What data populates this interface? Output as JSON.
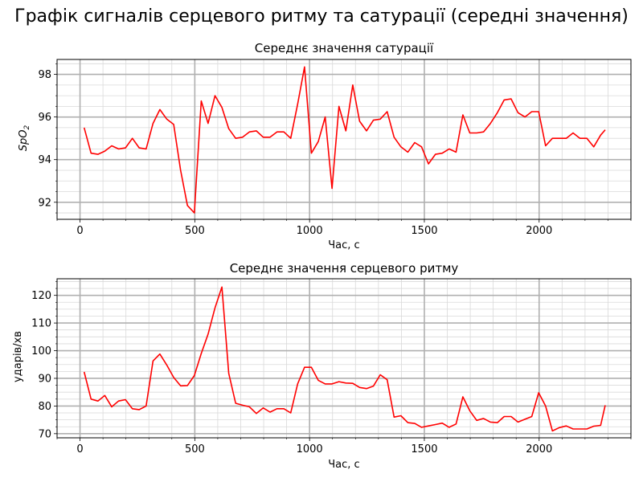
{
  "figure": {
    "title": "Графік сигналів серцевого ритму та сатурації (середні значення)"
  },
  "chart_data": [
    {
      "type": "line",
      "title": "Середнє значення сатурації",
      "xlabel": "Час, с",
      "ylabel": "SpO2",
      "xlim": [
        -100,
        2400
      ],
      "ylim": [
        91.2,
        98.7
      ],
      "xticks": [
        0,
        500,
        1000,
        1500,
        2000
      ],
      "yticks": [
        92,
        94,
        96,
        98
      ],
      "grid": true,
      "minor_grid": true,
      "series": [
        {
          "color": "#ff0000",
          "x": [
            18,
            48,
            78,
            108,
            138,
            168,
            198,
            228,
            258,
            288,
            318,
            348,
            378,
            408,
            438,
            468,
            498,
            528,
            558,
            588,
            618,
            648,
            678,
            708,
            738,
            768,
            798,
            828,
            858,
            888,
            918,
            948,
            978,
            1008,
            1038,
            1068,
            1098,
            1128,
            1158,
            1188,
            1218,
            1248,
            1278,
            1308,
            1338,
            1368,
            1398,
            1428,
            1458,
            1488,
            1518,
            1548,
            1578,
            1608,
            1638,
            1668,
            1698,
            1728,
            1758,
            1788,
            1818,
            1848,
            1878,
            1908,
            1938,
            1968,
            1998,
            2028,
            2058,
            2088,
            2118,
            2148,
            2178,
            2208,
            2238,
            2268,
            2288
          ],
          "y": [
            95.5,
            94.3,
            94.25,
            94.4,
            94.65,
            94.5,
            94.55,
            95.0,
            94.55,
            94.5,
            95.7,
            96.35,
            95.9,
            95.65,
            93.5,
            91.85,
            91.5,
            96.75,
            95.7,
            97.0,
            96.45,
            95.45,
            95.0,
            95.05,
            95.3,
            95.35,
            95.05,
            95.05,
            95.3,
            95.3,
            95.0,
            96.6,
            98.35,
            94.3,
            94.85,
            96.0,
            92.65,
            96.5,
            95.35,
            97.5,
            95.8,
            95.35,
            95.85,
            95.9,
            96.25,
            95.05,
            94.6,
            94.35,
            94.8,
            94.6,
            93.8,
            94.25,
            94.3,
            94.5,
            94.35,
            96.1,
            95.25,
            95.25,
            95.3,
            95.7,
            96.2,
            96.8,
            96.85,
            96.2,
            96.0,
            96.25,
            96.25,
            94.65,
            95.0,
            95.0,
            95.0,
            95.25,
            95.0,
            95.0,
            94.6,
            95.15,
            95.4
          ]
        }
      ]
    },
    {
      "type": "line",
      "title": "Середнє значення серцевого ритму",
      "xlabel": "Час, с",
      "ylabel": "ударів/хв",
      "xlim": [
        -100,
        2400
      ],
      "ylim": [
        68.5,
        126.0
      ],
      "xticks": [
        0,
        500,
        1000,
        1500,
        2000
      ],
      "yticks": [
        70,
        80,
        90,
        100,
        110,
        120
      ],
      "grid": true,
      "minor_grid": true,
      "series": [
        {
          "color": "#ff0000",
          "x": [
            18,
            48,
            78,
            108,
            138,
            168,
            198,
            228,
            258,
            288,
            318,
            348,
            378,
            408,
            438,
            468,
            498,
            528,
            558,
            588,
            618,
            648,
            678,
            708,
            738,
            768,
            798,
            828,
            858,
            888,
            918,
            948,
            978,
            1008,
            1038,
            1068,
            1098,
            1128,
            1158,
            1188,
            1218,
            1248,
            1278,
            1308,
            1338,
            1368,
            1398,
            1428,
            1458,
            1488,
            1518,
            1548,
            1578,
            1608,
            1638,
            1668,
            1698,
            1728,
            1758,
            1788,
            1818,
            1848,
            1878,
            1908,
            1938,
            1968,
            1998,
            2028,
            2058,
            2088,
            2118,
            2148,
            2178,
            2208,
            2238,
            2268,
            2288
          ],
          "y": [
            92.3,
            82.5,
            81.8,
            83.8,
            79.7,
            81.8,
            82.3,
            79.0,
            78.7,
            80.0,
            96.3,
            98.8,
            94.8,
            90.3,
            87.3,
            87.4,
            91.0,
            99.0,
            106.0,
            115.5,
            123.0,
            91.8,
            81.0,
            80.3,
            79.7,
            77.3,
            79.3,
            77.8,
            79.0,
            79.0,
            77.5,
            88.0,
            94.0,
            94.0,
            89.3,
            88.0,
            88.0,
            88.8,
            88.3,
            88.2,
            86.7,
            86.3,
            87.2,
            91.3,
            89.5,
            76.0,
            76.5,
            74.0,
            73.7,
            72.3,
            72.8,
            73.3,
            73.8,
            72.3,
            73.5,
            83.3,
            78.3,
            74.8,
            75.5,
            74.2,
            74.0,
            76.2,
            76.2,
            74.2,
            75.2,
            76.2,
            84.8,
            80.0,
            71.0,
            72.2,
            72.8,
            71.7,
            71.7,
            71.7,
            72.7,
            73.0,
            80.3
          ]
        }
      ]
    }
  ]
}
